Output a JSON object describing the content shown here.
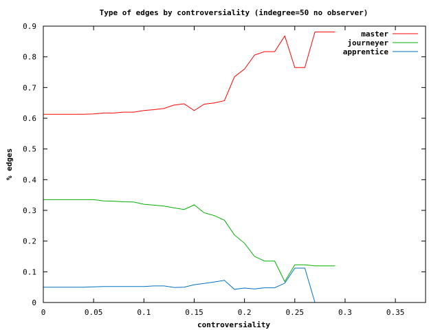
{
  "chart_data": {
    "type": "line",
    "title": "Type of edges by controversiality (indegree=50 no observer)",
    "xlabel": "controversiality",
    "ylabel": "% edges",
    "xlim": [
      0,
      0.38
    ],
    "ylim": [
      0,
      0.9
    ],
    "x_ticks": [
      0,
      0.05,
      0.1,
      0.15,
      0.2,
      0.25,
      0.3,
      0.35
    ],
    "x_tick_labels": [
      "0",
      "0.05",
      "0.1",
      "0.15",
      "0.2",
      "0.25",
      "0.3",
      "0.35"
    ],
    "y_ticks": [
      0,
      0.1,
      0.2,
      0.3,
      0.4,
      0.5,
      0.6,
      0.7,
      0.8,
      0.9
    ],
    "y_tick_labels": [
      "0",
      "0.1",
      "0.2",
      "0.3",
      "0.4",
      "0.5",
      "0.6",
      "0.7",
      "0.8",
      "0.9"
    ],
    "grid": false,
    "legend_position": "top-right",
    "series": [
      {
        "name": "master",
        "color": "#ff0000",
        "points": [
          [
            0,
            0.613
          ],
          [
            0.01,
            0.613
          ],
          [
            0.02,
            0.613
          ],
          [
            0.03,
            0.613
          ],
          [
            0.04,
            0.613
          ],
          [
            0.05,
            0.614
          ],
          [
            0.06,
            0.617
          ],
          [
            0.07,
            0.617
          ],
          [
            0.08,
            0.62
          ],
          [
            0.09,
            0.62
          ],
          [
            0.1,
            0.625
          ],
          [
            0.11,
            0.628
          ],
          [
            0.12,
            0.632
          ],
          [
            0.13,
            0.643
          ],
          [
            0.14,
            0.647
          ],
          [
            0.15,
            0.625
          ],
          [
            0.16,
            0.646
          ],
          [
            0.17,
            0.65
          ],
          [
            0.18,
            0.657
          ],
          [
            0.19,
            0.735
          ],
          [
            0.2,
            0.76
          ],
          [
            0.21,
            0.806
          ],
          [
            0.22,
            0.817
          ],
          [
            0.23,
            0.817
          ],
          [
            0.24,
            0.868
          ],
          [
            0.25,
            0.765
          ],
          [
            0.26,
            0.765
          ],
          [
            0.27,
            0.881
          ],
          [
            0.28,
            0.881
          ],
          [
            0.29,
            0.881
          ]
        ]
      },
      {
        "name": "journeyer",
        "color": "#00b000",
        "points": [
          [
            0,
            0.335
          ],
          [
            0.01,
            0.335
          ],
          [
            0.02,
            0.335
          ],
          [
            0.03,
            0.335
          ],
          [
            0.04,
            0.335
          ],
          [
            0.05,
            0.335
          ],
          [
            0.06,
            0.331
          ],
          [
            0.07,
            0.33
          ],
          [
            0.08,
            0.328
          ],
          [
            0.09,
            0.327
          ],
          [
            0.1,
            0.32
          ],
          [
            0.11,
            0.317
          ],
          [
            0.12,
            0.314
          ],
          [
            0.13,
            0.308
          ],
          [
            0.14,
            0.303
          ],
          [
            0.15,
            0.318
          ],
          [
            0.16,
            0.292
          ],
          [
            0.17,
            0.283
          ],
          [
            0.18,
            0.268
          ],
          [
            0.19,
            0.22
          ],
          [
            0.2,
            0.193
          ],
          [
            0.21,
            0.15
          ],
          [
            0.22,
            0.135
          ],
          [
            0.23,
            0.135
          ],
          [
            0.24,
            0.068
          ],
          [
            0.25,
            0.123
          ],
          [
            0.26,
            0.123
          ],
          [
            0.27,
            0.119
          ],
          [
            0.28,
            0.119
          ],
          [
            0.29,
            0.119
          ]
        ]
      },
      {
        "name": "apprentice",
        "color": "#0070c0",
        "points": [
          [
            0,
            0.05
          ],
          [
            0.01,
            0.05
          ],
          [
            0.02,
            0.05
          ],
          [
            0.03,
            0.05
          ],
          [
            0.04,
            0.05
          ],
          [
            0.05,
            0.051
          ],
          [
            0.06,
            0.052
          ],
          [
            0.07,
            0.052
          ],
          [
            0.08,
            0.052
          ],
          [
            0.09,
            0.052
          ],
          [
            0.1,
            0.052
          ],
          [
            0.11,
            0.054
          ],
          [
            0.12,
            0.054
          ],
          [
            0.13,
            0.049
          ],
          [
            0.14,
            0.05
          ],
          [
            0.15,
            0.058
          ],
          [
            0.16,
            0.062
          ],
          [
            0.17,
            0.067
          ],
          [
            0.18,
            0.072
          ],
          [
            0.19,
            0.043
          ],
          [
            0.2,
            0.047
          ],
          [
            0.21,
            0.044
          ],
          [
            0.22,
            0.048
          ],
          [
            0.23,
            0.048
          ],
          [
            0.24,
            0.063
          ],
          [
            0.25,
            0.112
          ],
          [
            0.26,
            0.112
          ],
          [
            0.27,
            0.0
          ]
        ]
      }
    ]
  }
}
